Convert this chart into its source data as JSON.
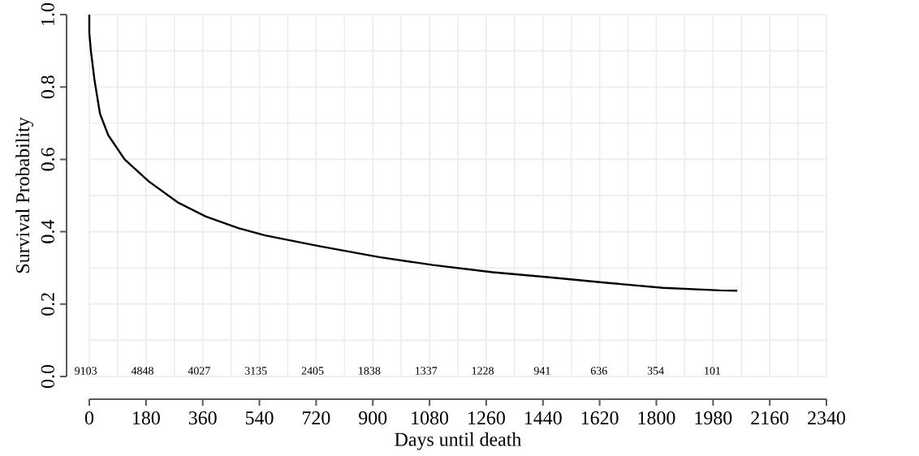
{
  "chart_data": {
    "type": "line",
    "xlabel": "Days until death",
    "ylabel": "Survival Probability",
    "series": [
      {
        "color": "#000000",
        "x": [
          0,
          0,
          5,
          17,
          34,
          60,
          112,
          189,
          283,
          370,
          473,
          558,
          730,
          920,
          1091,
          1280,
          1460,
          1641,
          1821,
          2002,
          2057
        ],
        "values": [
          1.0,
          0.95,
          0.9,
          0.816,
          0.726,
          0.667,
          0.6,
          0.539,
          0.48,
          0.442,
          0.41,
          0.39,
          0.36,
          0.33,
          0.308,
          0.288,
          0.274,
          0.259,
          0.245,
          0.238,
          0.237
        ]
      }
    ],
    "xlim": [
      0,
      2340
    ],
    "xticks": [
      0,
      180,
      360,
      540,
      720,
      900,
      1080,
      1260,
      1440,
      1620,
      1800,
      1980,
      2160,
      2340
    ],
    "ylim": [
      0,
      1
    ],
    "yticks": [
      {
        "value": 0,
        "label": "0.0"
      },
      {
        "value": 0.2,
        "label": "0.2"
      },
      {
        "value": 0.4,
        "label": "0.4"
      },
      {
        "value": 0.6,
        "label": "0.6"
      },
      {
        "value": 0.8,
        "label": "0.8"
      },
      {
        "value": 1,
        "label": "1.0"
      }
    ],
    "grid": true,
    "line_style": "solid",
    "marker": "none",
    "annotations": [
      "9103",
      "4848",
      "4027",
      "3135",
      "2405",
      "1838",
      "1337",
      "1228",
      "941",
      "636",
      "354",
      "101"
    ]
  }
}
